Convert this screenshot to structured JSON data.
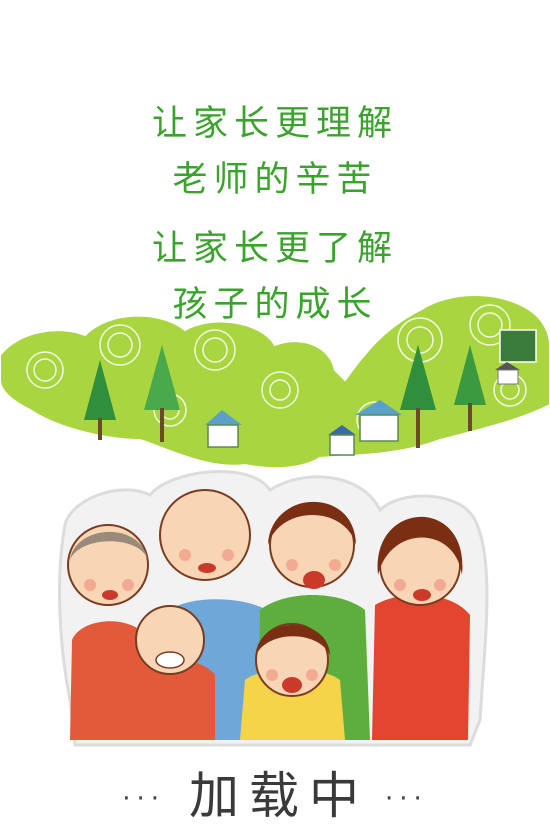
{
  "slogan": {
    "line1": "让家长更理解",
    "line2": "老师的辛苦",
    "line3": "让家长更了解",
    "line4": "孩子的成长"
  },
  "loading": {
    "dots_left": "···",
    "text": "加载中",
    "dots_right": "···"
  },
  "illustration": {
    "description_icons": [
      "hills-icon",
      "tree-icon",
      "house-icon",
      "family-icon"
    ]
  },
  "colors": {
    "slogan_green": "#3aa32c",
    "hill_green": "#9fd13b",
    "tree_green": "#2e8b3a",
    "text_dark": "#3a3a3a"
  }
}
